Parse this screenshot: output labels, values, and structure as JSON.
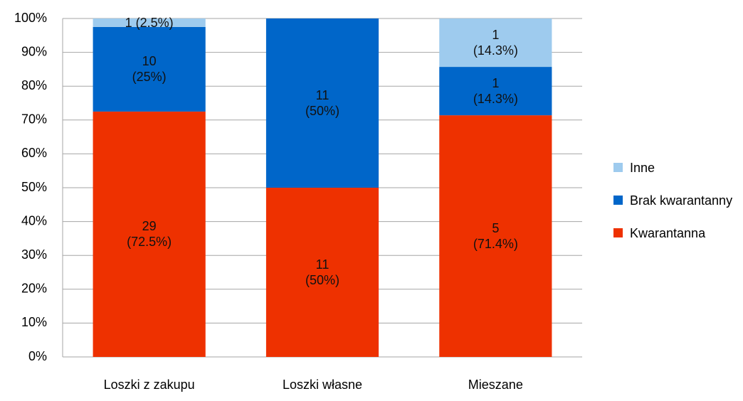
{
  "chart_data": {
    "type": "stacked_bar",
    "categories": [
      "Loszki z zakupu",
      "Loszki własne",
      "Mieszane"
    ],
    "series": [
      {
        "name": "Kwarantanna",
        "color": "#ee3100",
        "values": [
          72.5,
          50,
          71.4
        ],
        "value_labels": [
          "29\n(72.5%)",
          "11\n(50%)",
          "5\n(71.4%)"
        ]
      },
      {
        "name": "Brak kwarantanny",
        "color": "#0066c9",
        "values": [
          25,
          50,
          14.3
        ],
        "value_labels": [
          "10\n(25%)",
          "11\n(50%)",
          "1\n(14.3%)"
        ]
      },
      {
        "name": "Inne",
        "color": "#9ecbee",
        "values": [
          2.5,
          null,
          14.3
        ],
        "value_labels": [
          "1 (2.5%)",
          null,
          "1\n(14.3%)"
        ]
      }
    ],
    "ylim": [
      0,
      100
    ],
    "yticks": [
      {
        "value": 0,
        "label": "0%"
      },
      {
        "value": 10,
        "label": "10%"
      },
      {
        "value": 20,
        "label": "20%"
      },
      {
        "value": 30,
        "label": "30%"
      },
      {
        "value": 40,
        "label": "40%"
      },
      {
        "value": 50,
        "label": "50%"
      },
      {
        "value": 60,
        "label": "60%"
      },
      {
        "value": 70,
        "label": "70%"
      },
      {
        "value": 80,
        "label": "80%"
      },
      {
        "value": 90,
        "label": "90%"
      },
      {
        "value": 100,
        "label": "100%"
      }
    ],
    "grid": true,
    "legend": "right"
  }
}
